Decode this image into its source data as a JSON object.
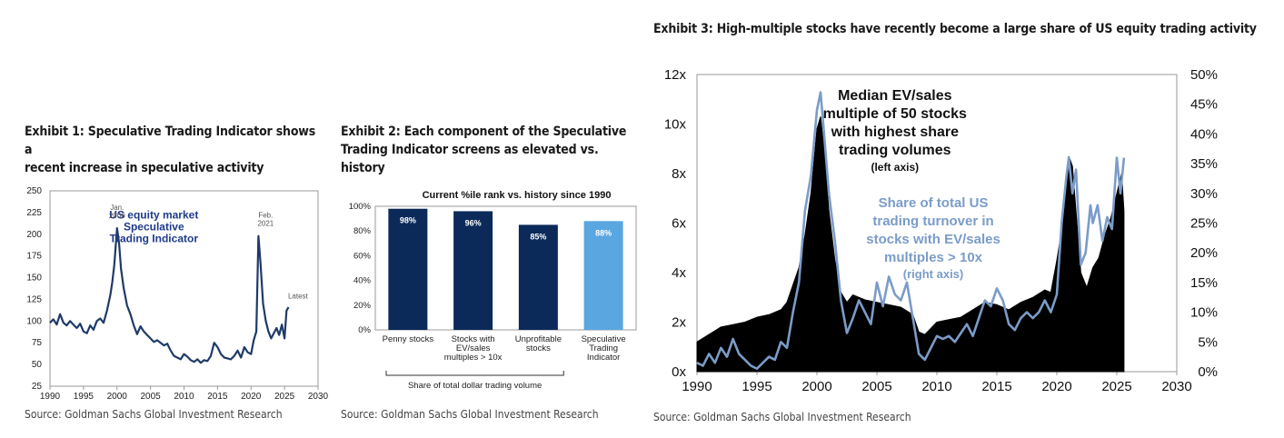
{
  "exhibit1": {
    "title_line1": "Exhibit 1: Speculative Trading Indicator shows a",
    "title_line2": "recent increase in speculative activity",
    "source": "Source: Goldman Sachs Global Investment Research",
    "chart_data": {
      "type": "line",
      "title": "",
      "annotation_lines": [
        "US equity market",
        "Speculative",
        "Trading Indicator"
      ],
      "peak_labels": [
        {
          "lines": [
            "Jan.",
            "2000"
          ],
          "x": 2000.0,
          "y": 207
        },
        {
          "lines": [
            "Feb.",
            "2021"
          ],
          "x": 2021.1,
          "y": 198
        }
      ],
      "latest_label": "Latest",
      "x_ticks": [
        1990,
        1995,
        2000,
        2005,
        2010,
        2015,
        2020,
        2025,
        2030
      ],
      "y_ticks": [
        25,
        50,
        75,
        100,
        125,
        150,
        175,
        200,
        225,
        250
      ],
      "xlim": [
        1990,
        2030
      ],
      "ylim": [
        25,
        250
      ],
      "series_color": "#1f3a68",
      "x": [
        1990,
        1990.5,
        1991,
        1991.5,
        1992,
        1992.5,
        1993,
        1993.5,
        1994,
        1994.5,
        1995,
        1995.5,
        1996,
        1996.5,
        1997,
        1997.5,
        1998,
        1998.5,
        1999,
        1999.3,
        1999.6,
        2000,
        2000.3,
        2000.6,
        2001,
        2001.5,
        2002,
        2002.5,
        2003,
        2003.5,
        2004,
        2004.5,
        2005,
        2005.5,
        2006,
        2006.5,
        2007,
        2007.5,
        2008,
        2008.5,
        2009,
        2009.5,
        2010,
        2010.5,
        2011,
        2011.5,
        2012,
        2012.5,
        2013,
        2013.5,
        2014,
        2014.5,
        2015,
        2015.5,
        2016,
        2016.5,
        2017,
        2017.5,
        2018,
        2018.5,
        2019,
        2019.5,
        2020,
        2020.4,
        2020.8,
        2021.1,
        2021.4,
        2021.8,
        2022.2,
        2022.6,
        2023,
        2023.4,
        2023.8,
        2024.2,
        2024.6,
        2025,
        2025.3,
        2025.6
      ],
      "values": [
        98,
        102,
        96,
        108,
        98,
        95,
        100,
        96,
        92,
        97,
        88,
        86,
        95,
        90,
        100,
        103,
        98,
        112,
        130,
        145,
        165,
        207,
        190,
        160,
        138,
        118,
        108,
        95,
        85,
        94,
        88,
        84,
        80,
        76,
        78,
        75,
        72,
        74,
        66,
        60,
        58,
        56,
        62,
        59,
        55,
        53,
        56,
        52,
        55,
        54,
        60,
        75,
        70,
        62,
        58,
        57,
        56,
        60,
        66,
        58,
        70,
        64,
        62,
        78,
        88,
        198,
        168,
        120,
        100,
        88,
        80,
        86,
        92,
        84,
        96,
        80,
        112,
        116
      ]
    }
  },
  "exhibit2": {
    "title_line1": "Exhibit 2: Each component of the Speculative",
    "title_line2": "Trading Indicator screens as elevated vs. history",
    "source": "Source: Goldman Sachs Global Investment Research",
    "chart_data": {
      "type": "bar",
      "title": "Current %ile rank vs. history since 1990",
      "categories": [
        [
          "Penny stocks"
        ],
        [
          "Stocks with",
          "EV/sales",
          "multiples > 10x"
        ],
        [
          "Unprofitable",
          "stocks"
        ],
        [
          "Speculative",
          "Trading",
          "Indicator"
        ]
      ],
      "values": [
        98,
        96,
        85,
        88
      ],
      "value_labels": [
        "98%",
        "96%",
        "85%",
        "88%"
      ],
      "colors": [
        "#0b2a59",
        "#0b2a59",
        "#0b2a59",
        "#5aa6e0"
      ],
      "y_ticks": [
        "0%",
        "20%",
        "40%",
        "60%",
        "80%",
        "100%"
      ],
      "ylim": [
        0,
        100
      ],
      "bracket_label": "Share of total dollar trading volume"
    }
  },
  "exhibit3": {
    "title": "Exhibit 3: High-multiple stocks have recently become a large share of US equity trading activity",
    "source": "Source: Goldman Sachs Global Investment Research",
    "chart_data": {
      "type": "area",
      "x_ticks": [
        1990,
        1995,
        2000,
        2005,
        2010,
        2015,
        2020,
        2025,
        2030
      ],
      "xlim": [
        1990,
        2030
      ],
      "left_y_ticks": [
        "0x",
        "2x",
        "4x",
        "6x",
        "8x",
        "10x",
        "12x"
      ],
      "left_ylim": [
        0,
        12
      ],
      "right_y_ticks": [
        "0%",
        "5%",
        "10%",
        "15%",
        "20%",
        "25%",
        "30%",
        "35%",
        "40%",
        "45%",
        "50%"
      ],
      "right_ylim": [
        0,
        50
      ],
      "annotation_black": [
        "Median EV/sales",
        "multiple of 50 stocks",
        "with highest share",
        "trading volumes"
      ],
      "annotation_black_axis": "(left axis)",
      "annotation_steel": [
        "Share of total US",
        "trading turnover in",
        "stocks with EV/sales",
        "multiples > 10x"
      ],
      "annotation_steel_axis": "(right axis)",
      "series": [
        {
          "name": "Median EV/sales multiple of 50 stocks with highest share trading volumes",
          "axis": "left",
          "color": "#000000",
          "x": [
            1990,
            1991,
            1992,
            1993,
            1994,
            1995,
            1996,
            1997,
            1997.5,
            1998,
            1998.5,
            1999,
            1999.5,
            2000,
            2000.3,
            2000.6,
            2001,
            2001.5,
            2002,
            2002.5,
            2003,
            2004,
            2005,
            2006,
            2007,
            2008,
            2008.5,
            2009,
            2010,
            2011,
            2012,
            2013,
            2014,
            2015,
            2016,
            2017,
            2018,
            2019,
            2019.5,
            2020,
            2020.5,
            2021,
            2021.3,
            2021.6,
            2022,
            2022.5,
            2023,
            2023.5,
            2024,
            2024.5,
            2025,
            2025.4,
            2025.6
          ],
          "values": [
            1.2,
            1.5,
            1.8,
            1.9,
            2.0,
            2.2,
            2.3,
            2.5,
            2.8,
            3.5,
            4.2,
            5.5,
            7.2,
            9.8,
            10.3,
            9.0,
            6.5,
            4.5,
            3.2,
            2.8,
            3.1,
            2.9,
            2.8,
            2.7,
            2.6,
            2.3,
            1.6,
            1.5,
            2.0,
            2.1,
            2.2,
            2.5,
            2.8,
            2.7,
            2.5,
            2.8,
            3.0,
            3.3,
            3.2,
            4.5,
            6.0,
            8.7,
            8.3,
            6.5,
            4.0,
            3.4,
            4.2,
            4.6,
            5.5,
            6.2,
            7.2,
            8.0,
            6.5
          ]
        },
        {
          "name": "Share of total US trading turnover in stocks with EV/sales multiples > 10x",
          "axis": "right",
          "color": "#7b9cc8",
          "x": [
            1990,
            1990.5,
            1991,
            1991.5,
            1992,
            1992.5,
            1993,
            1993.5,
            1994,
            1994.5,
            1995,
            1995.5,
            1996,
            1996.5,
            1997,
            1997.5,
            1998,
            1998.5,
            1999,
            1999.5,
            2000,
            2000.3,
            2000.6,
            2001,
            2001.5,
            2002,
            2002.5,
            2003,
            2003.5,
            2004,
            2004.5,
            2005,
            2005.5,
            2006,
            2006.5,
            2007,
            2007.5,
            2008,
            2008.5,
            2009,
            2009.5,
            2010,
            2010.5,
            2011,
            2011.5,
            2012,
            2012.5,
            2013,
            2013.5,
            2014,
            2014.5,
            2015,
            2015.5,
            2016,
            2016.5,
            2017,
            2017.5,
            2018,
            2018.5,
            2019,
            2019.5,
            2020,
            2020.4,
            2020.8,
            2021,
            2021.3,
            2021.6,
            2022,
            2022.4,
            2022.8,
            2023,
            2023.4,
            2023.8,
            2024.2,
            2024.6,
            2025,
            2025.3,
            2025.6
          ],
          "values": [
            1.5,
            1.0,
            3.0,
            1.5,
            4.0,
            2.5,
            5.5,
            3.0,
            2.0,
            1.0,
            0.5,
            1.5,
            2.5,
            2.0,
            5.0,
            4.0,
            10.0,
            15.0,
            27.0,
            33.0,
            44.0,
            47.0,
            40.0,
            30.0,
            22.0,
            12.0,
            6.5,
            9.0,
            12.0,
            10.0,
            8.0,
            15.0,
            11.0,
            16.0,
            13.0,
            12.0,
            15.0,
            9.0,
            3.0,
            2.0,
            4.0,
            6.0,
            5.5,
            6.0,
            5.0,
            6.5,
            8.0,
            6.0,
            9.0,
            12.0,
            11.0,
            14.0,
            12.0,
            8.0,
            7.0,
            9.0,
            10.0,
            9.0,
            10.0,
            12.0,
            10.0,
            13.0,
            25.0,
            33.0,
            36.0,
            30.0,
            34.0,
            18.0,
            20.0,
            28.0,
            25.0,
            28.0,
            22.0,
            26.0,
            24.0,
            36.0,
            30.0,
            36.0
          ]
        }
      ]
    }
  }
}
